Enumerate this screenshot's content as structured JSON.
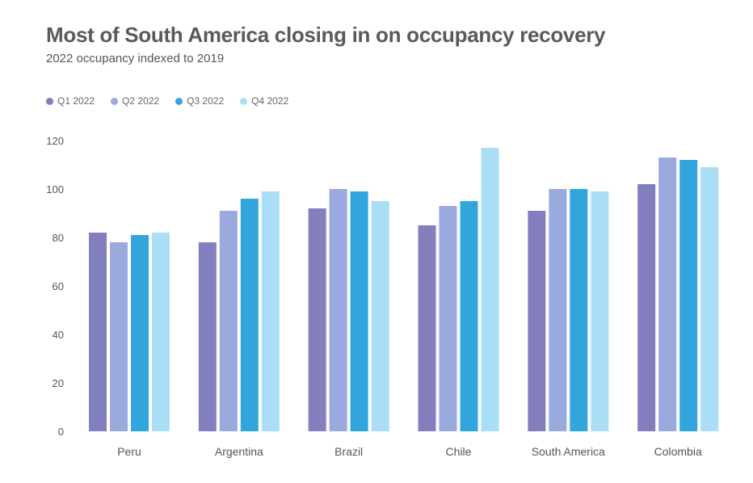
{
  "title": "Most of South America closing in on occupancy recovery",
  "subtitle": "2022 occupancy indexed to 2019",
  "legend": [
    {
      "label": "Q1 2022",
      "color": "#837fbe"
    },
    {
      "label": "Q2 2022",
      "color": "#9aa9de"
    },
    {
      "label": "Q3 2022",
      "color": "#32a6dc"
    },
    {
      "label": "Q4 2022",
      "color": "#a9def6"
    }
  ],
  "chart_data": {
    "type": "bar",
    "title": "Most of South America closing in on occupancy recovery",
    "subtitle": "2022 occupancy indexed to 2019",
    "categories": [
      "Peru",
      "Argentina",
      "Brazil",
      "Chile",
      "South America",
      "Colombia"
    ],
    "series": [
      {
        "name": "Q1 2022",
        "color": "#837fbe",
        "values": [
          82,
          78,
          92,
          85,
          91,
          102
        ]
      },
      {
        "name": "Q2 2022",
        "color": "#9aa9de",
        "values": [
          78,
          91,
          100,
          93,
          100,
          113
        ]
      },
      {
        "name": "Q3 2022",
        "color": "#32a6dc",
        "values": [
          81,
          96,
          99,
          95,
          100,
          112
        ]
      },
      {
        "name": "Q4 2022",
        "color": "#a9def6",
        "values": [
          82,
          99,
          95,
          117,
          99,
          109
        ]
      }
    ],
    "yticks": [
      0,
      20,
      40,
      60,
      80,
      100,
      120
    ],
    "ylim": [
      0,
      120
    ],
    "grid": false,
    "legend_position": "top-left"
  }
}
